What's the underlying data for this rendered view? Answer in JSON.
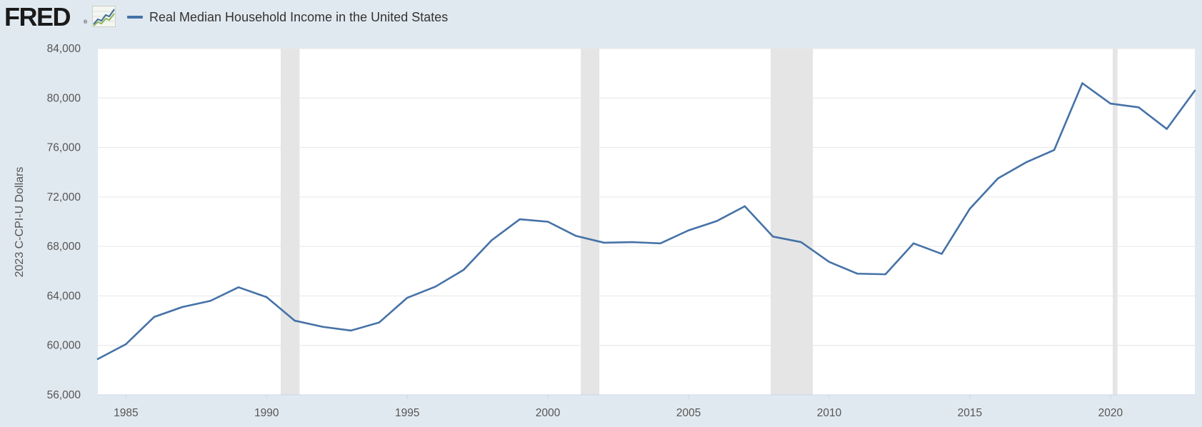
{
  "header": {
    "logo_text": "FRED",
    "logo_reg": "®",
    "legend_label": "Real Median Household Income in the United States"
  },
  "colors": {
    "series": "#4572a7",
    "recession": "#e5e5e5",
    "grid": "#e6e6e6",
    "plot_bg": "#ffffff",
    "page_bg": "#e1e9f0"
  },
  "chart_data": {
    "type": "line",
    "title": "Real Median Household Income in the United States",
    "xlabel": "",
    "ylabel": "2023 C-CPI-U Dollars",
    "xlim": [
      1984,
      2023
    ],
    "ylim": [
      56000,
      84000
    ],
    "yticks": [
      56000,
      60000,
      64000,
      68000,
      72000,
      76000,
      80000,
      84000
    ],
    "ytick_labels": [
      "56,000",
      "60,000",
      "64,000",
      "68,000",
      "72,000",
      "76,000",
      "80,000",
      "84,000"
    ],
    "xticks": [
      1985,
      1990,
      1995,
      2000,
      2005,
      2010,
      2015,
      2020
    ],
    "xtick_labels": [
      "1985",
      "1990",
      "1995",
      "2000",
      "2005",
      "2010",
      "2015",
      "2020"
    ],
    "grid": true,
    "recessions": [
      {
        "start": 1990.5,
        "end": 1991.17
      },
      {
        "start": 2001.17,
        "end": 2001.83
      },
      {
        "start": 2007.92,
        "end": 2009.42
      },
      {
        "start": 2020.08,
        "end": 2020.25
      }
    ],
    "series": [
      {
        "name": "Real Median Household Income in the United States",
        "x": [
          1984,
          1985,
          1986,
          1987,
          1988,
          1989,
          1990,
          1991,
          1992,
          1993,
          1994,
          1995,
          1996,
          1997,
          1998,
          1999,
          2000,
          2001,
          2002,
          2003,
          2004,
          2005,
          2006,
          2007,
          2008,
          2009,
          2010,
          2011,
          2012,
          2013,
          2014,
          2015,
          2016,
          2017,
          2018,
          2019,
          2020,
          2021,
          2022,
          2023
        ],
        "values": [
          58900,
          60100,
          62300,
          63100,
          63600,
          64700,
          63900,
          62000,
          61500,
          61200,
          61850,
          63850,
          64750,
          66100,
          68500,
          70200,
          70000,
          68850,
          68300,
          68350,
          68250,
          69300,
          70050,
          71250,
          68800,
          68350,
          66750,
          65800,
          65750,
          68250,
          67400,
          71050,
          73500,
          74800,
          75800,
          81200,
          79550,
          79250,
          77500,
          80600
        ]
      }
    ]
  }
}
